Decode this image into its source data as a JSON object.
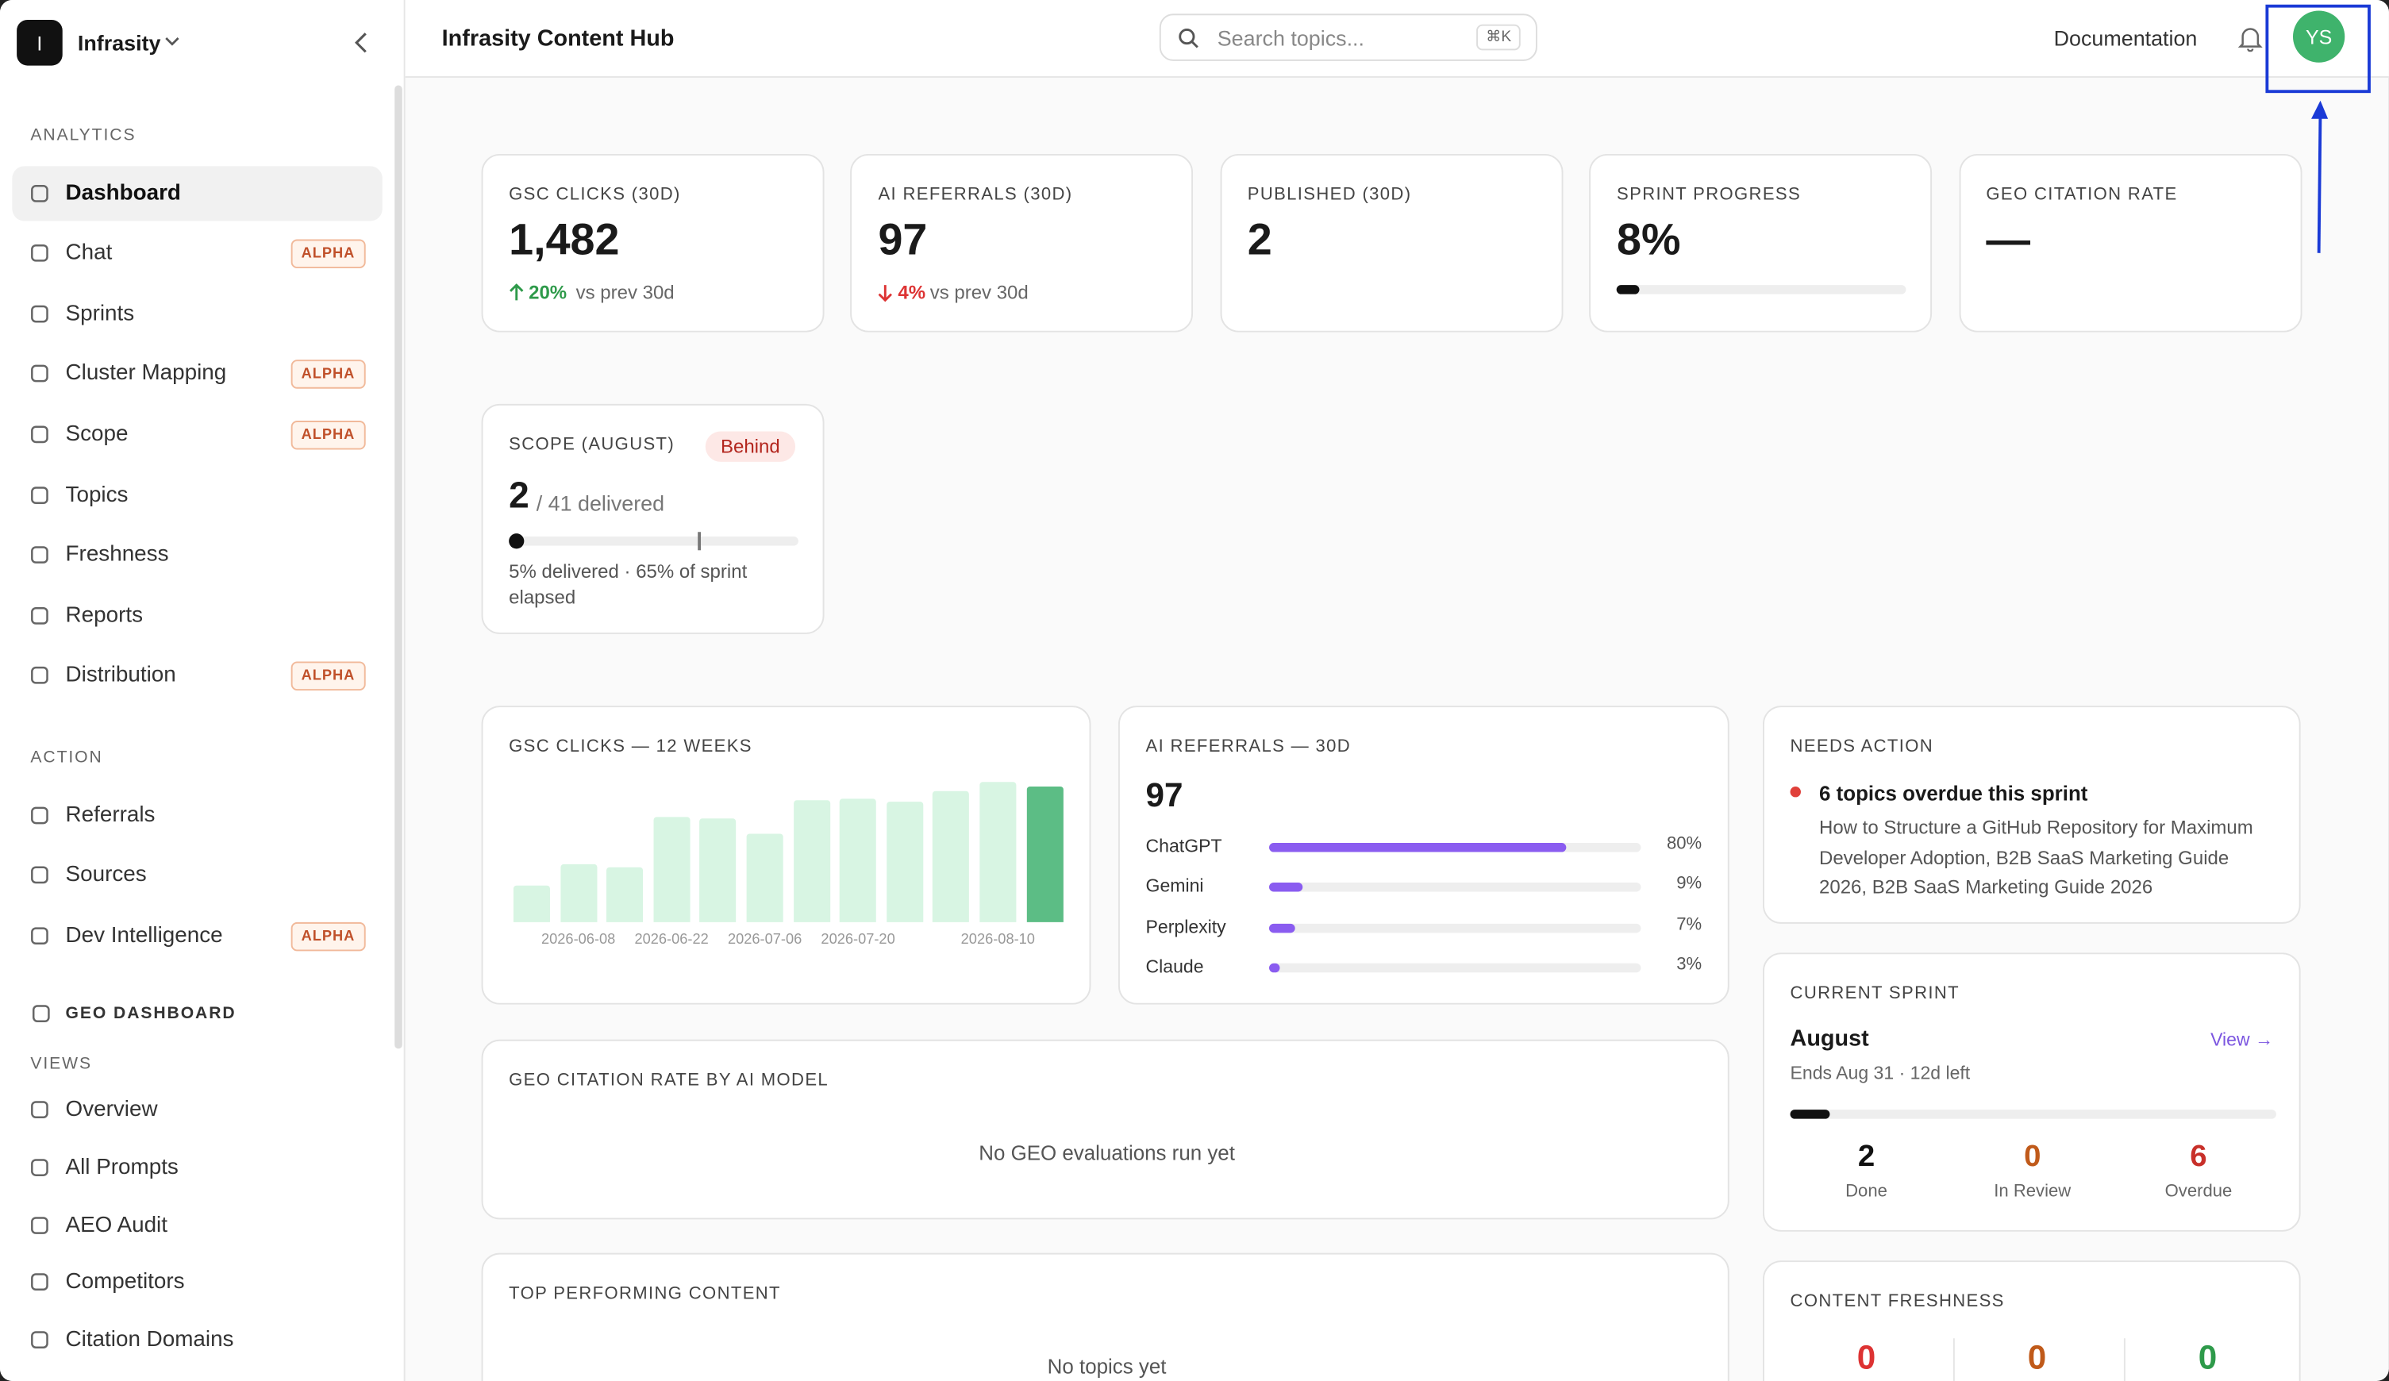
{
  "sidebar": {
    "workspace": "Infrasity",
    "logo": "I",
    "sections": [
      {
        "title": "ANALYTICS",
        "items": [
          {
            "label": "Dashboard"
          },
          {
            "label": "Chat",
            "badge": "ALPHA"
          },
          {
            "label": "Sprints"
          },
          {
            "label": "Cluster Mapping",
            "badge": "ALPHA"
          },
          {
            "label": "Scope",
            "badge": "ALPHA"
          },
          {
            "label": "Topics"
          },
          {
            "label": "Freshness"
          },
          {
            "label": "Reports"
          },
          {
            "label": "Distribution",
            "badge": "ALPHA"
          }
        ]
      },
      {
        "title": "ACTION",
        "items": [
          {
            "label": "Referrals"
          },
          {
            "label": "Sources"
          },
          {
            "label": "Dev Intelligence",
            "badge": "ALPHA"
          }
        ]
      },
      {
        "title": "GEO DASHBOARD",
        "items": []
      },
      {
        "title": "VIEWS",
        "items": [
          {
            "label": "Overview"
          },
          {
            "label": "All Prompts"
          },
          {
            "label": "AEO Audit"
          },
          {
            "label": "Competitors"
          },
          {
            "label": "Citation Domains"
          }
        ]
      }
    ]
  },
  "header": {
    "title": "Infrasity Content Hub",
    "search_placeholder": "Search topics...",
    "shortcut": "⌘K",
    "link": "Documentation",
    "avatar": "YS"
  },
  "stat_cards": [
    {
      "label": "GSC CLICKS (30D)",
      "value": "1,482",
      "change": "20%",
      "direction": "up",
      "change_note": "vs prev 30d"
    },
    {
      "label": "AI REFERRALS (30D)",
      "value": "97",
      "change": "4%",
      "direction": "down",
      "change_note": "vs prev 30d"
    },
    {
      "label": "PUBLISHED (30D)",
      "value": "2"
    },
    {
      "label": "SPRINT PROGRESS",
      "value": "8%",
      "progress": 8
    },
    {
      "label": "GEO CITATION RATE",
      "value": "—"
    }
  ],
  "scope_card": {
    "label": "SCOPE (AUGUST)",
    "badge": "Behind",
    "value": "2",
    "total": "/ 41 delivered",
    "delivered": 5,
    "elapsed": 65,
    "note": "5% delivered · 65% of sprint elapsed"
  },
  "gsc_chart": {
    "title": "GSC CLICKS — 12 WEEKS",
    "categories": [
      null,
      "2026-06-08",
      null,
      "2026-06-22",
      null,
      "2026-07-06",
      null,
      "2026-07-20",
      null,
      null,
      "2026-08-10",
      null
    ],
    "values": [
      24,
      38,
      36,
      69,
      68,
      58,
      80,
      81,
      79,
      86,
      92,
      89
    ]
  },
  "ai_referrals": {
    "title": "AI REFERRALS — 30D",
    "total": "97",
    "rows": [
      {
        "name": "ChatGPT",
        "value": 80,
        "value_label": "80%"
      },
      {
        "name": "Gemini",
        "value": 9,
        "value_label": "9%"
      },
      {
        "name": "Perplexity",
        "value": 7,
        "value_label": "7%"
      },
      {
        "name": "Claude",
        "value": 3,
        "value_label": "3%"
      }
    ]
  },
  "needs_action": {
    "title": "NEEDS ACTION",
    "item": "6 topics overdue this sprint",
    "detail": "How to Structure a GitHub Repository for Maximum Developer Adoption, B2B SaaS Marketing Guide 2026, B2B SaaS Marketing Guide 2026"
  },
  "current_sprint": {
    "title": "CURRENT SPRINT",
    "name": "August",
    "link": "View →",
    "note": "Ends Aug 31 · 12d left",
    "progress": 8,
    "stats": [
      {
        "value": "2",
        "label": "Done"
      },
      {
        "value": "0",
        "label": "In Review"
      },
      {
        "value": "6",
        "label": "Overdue"
      }
    ]
  },
  "geo_citation": {
    "title": "GEO CITATION RATE BY AI MODEL",
    "empty": "No GEO evaluations run yet"
  },
  "top_content": {
    "title": "TOP PERFORMING CONTENT",
    "empty": "No topics yet"
  },
  "freshness": {
    "title": "CONTENT FRESHNESS",
    "values": [
      "0",
      "0",
      "0"
    ]
  }
}
